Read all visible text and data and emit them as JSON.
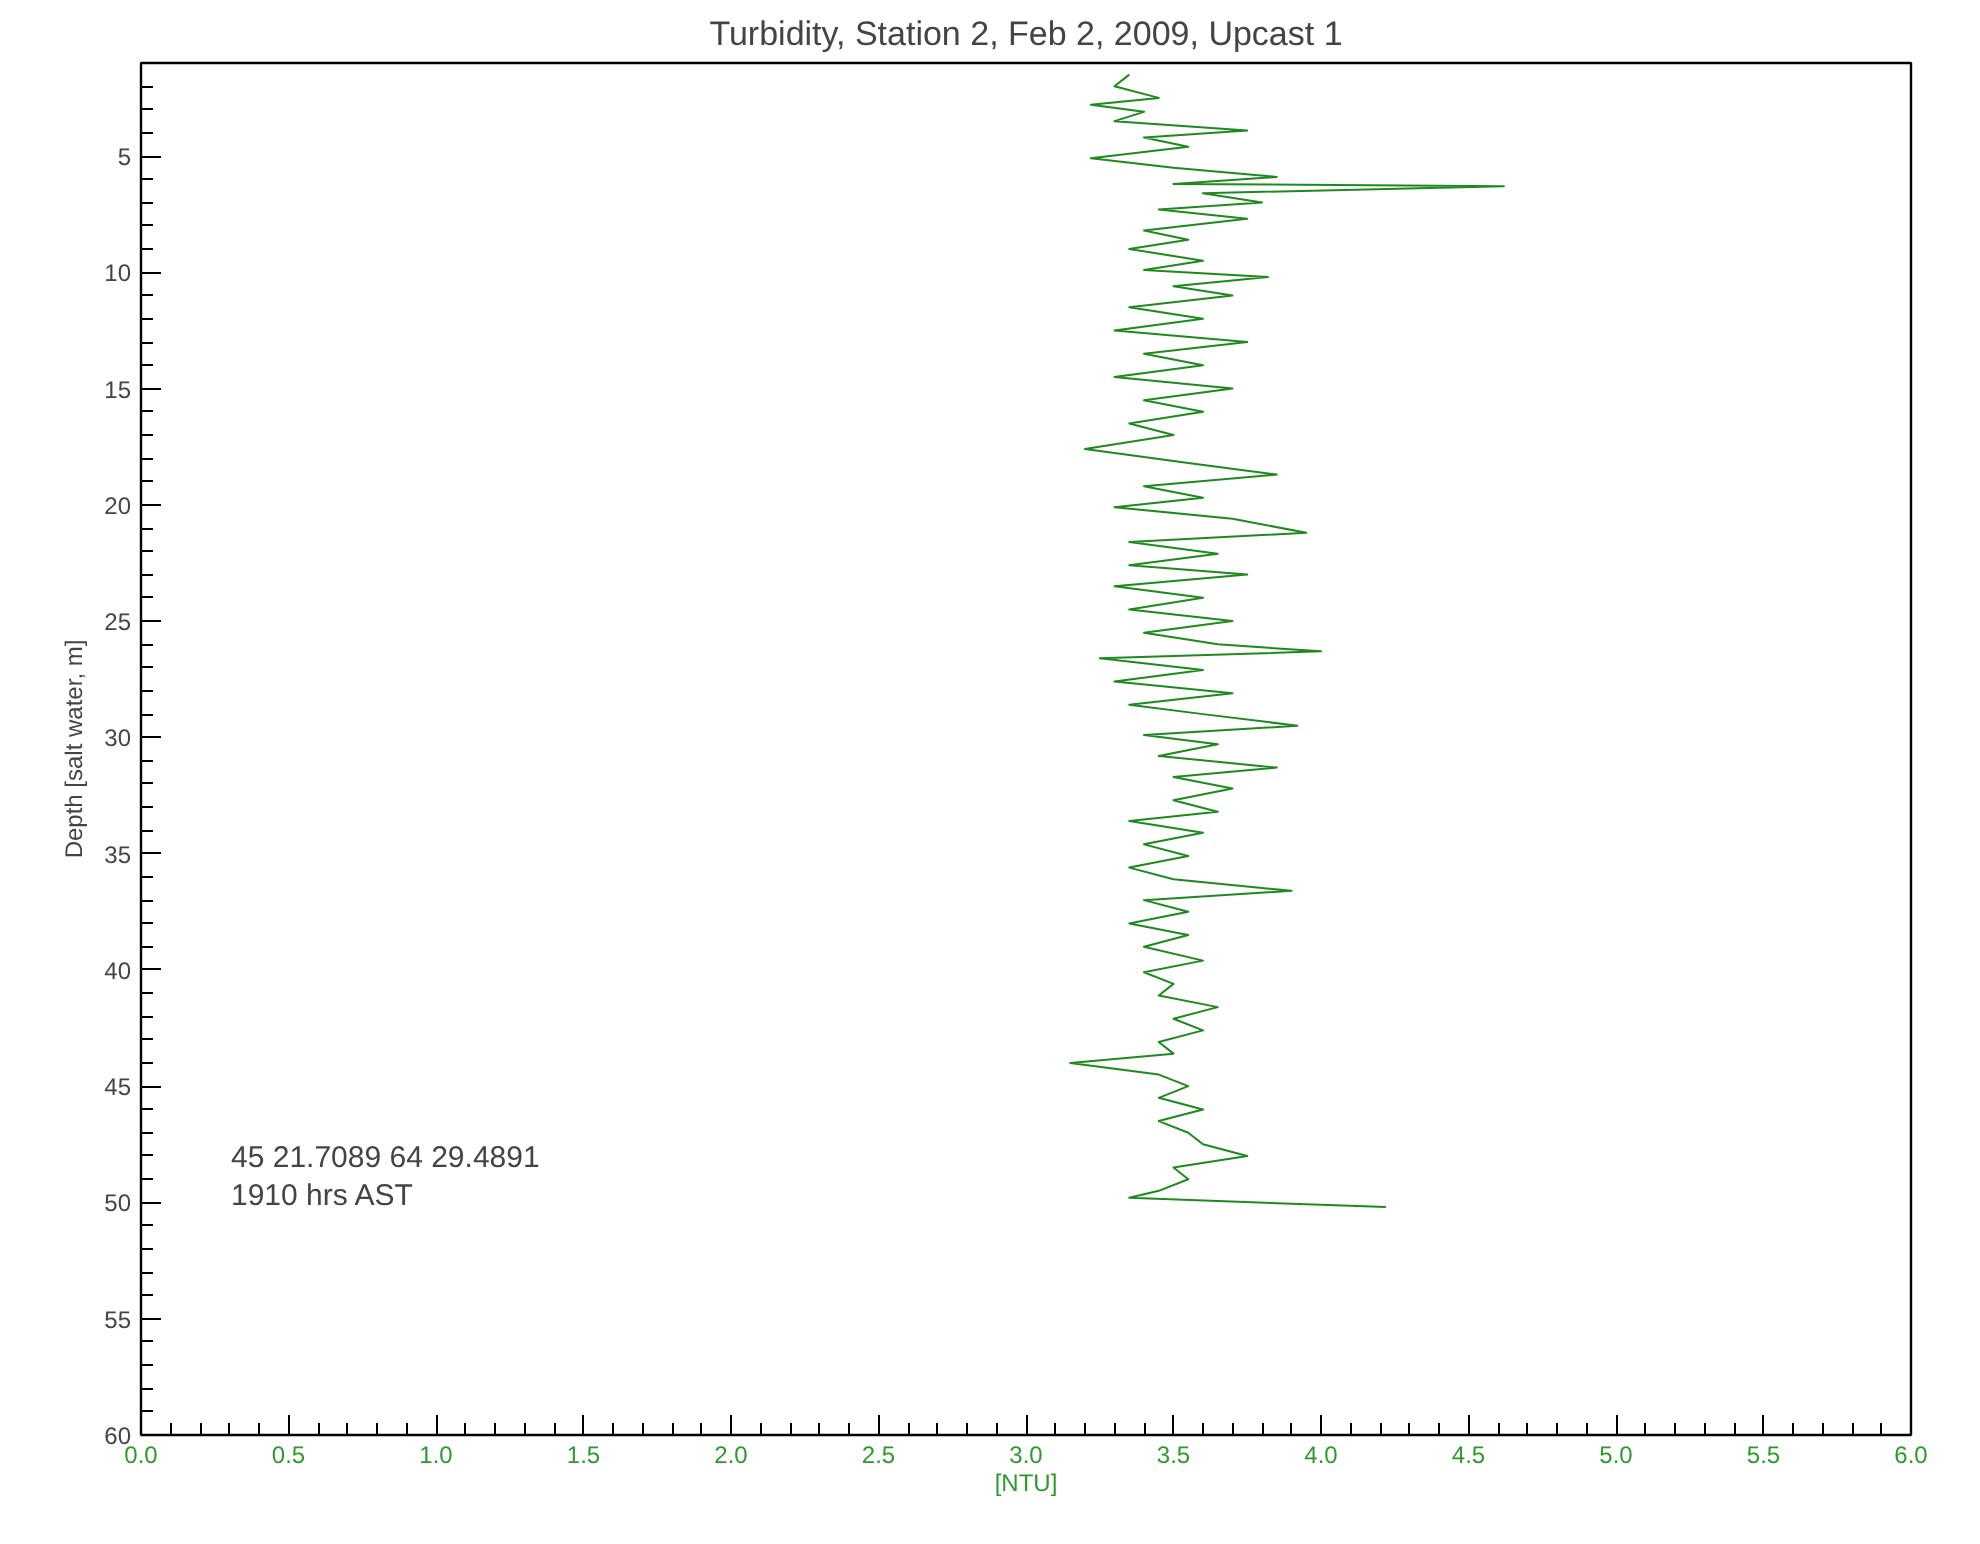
{
  "chart_data": {
    "type": "line",
    "title": "Turbidity, Station 2, Feb 2, 2009, Upcast 1",
    "xlabel": "[NTU]",
    "ylabel": "Depth [salt water, m]",
    "annotations": [
      "45 21.7089    64 29.4891",
      "1910 hrs AST"
    ],
    "xlim": [
      0,
      6
    ],
    "xticks": [
      {
        "value": 0,
        "label": "0.0"
      },
      {
        "value": 0.5,
        "label": "0.5"
      },
      {
        "value": 1,
        "label": "1.0"
      },
      {
        "value": 1.5,
        "label": "1.5"
      },
      {
        "value": 2,
        "label": "2.0"
      },
      {
        "value": 2.5,
        "label": "2.5"
      },
      {
        "value": 3,
        "label": "3.0"
      },
      {
        "value": 3.5,
        "label": "3.5"
      },
      {
        "value": 4,
        "label": "4.0"
      },
      {
        "value": 4.5,
        "label": "4.5"
      },
      {
        "value": 5,
        "label": "5.0"
      },
      {
        "value": 5.5,
        "label": "5.5"
      },
      {
        "value": 6,
        "label": "6.0"
      },
      {
        "value": 0.1,
        "label": null
      },
      {
        "value": 0.2,
        "label": null
      },
      {
        "value": 0.3,
        "label": null
      },
      {
        "value": 0.4,
        "label": null
      },
      {
        "value": 0.6,
        "label": null
      },
      {
        "value": 0.7,
        "label": null
      },
      {
        "value": 0.8,
        "label": null
      },
      {
        "value": 0.9,
        "label": null
      },
      {
        "value": 1.1,
        "label": null
      },
      {
        "value": 1.2,
        "label": null
      },
      {
        "value": 1.3,
        "label": null
      },
      {
        "value": 1.4,
        "label": null
      },
      {
        "value": 1.6,
        "label": null
      },
      {
        "value": 1.7,
        "label": null
      },
      {
        "value": 1.8,
        "label": null
      },
      {
        "value": 1.9,
        "label": null
      },
      {
        "value": 2.1,
        "label": null
      },
      {
        "value": 2.2,
        "label": null
      },
      {
        "value": 2.3,
        "label": null
      },
      {
        "value": 2.4,
        "label": null
      },
      {
        "value": 2.6,
        "label": null
      },
      {
        "value": 2.7,
        "label": null
      },
      {
        "value": 2.8,
        "label": null
      },
      {
        "value": 2.9,
        "label": null
      },
      {
        "value": 3.1,
        "label": null
      },
      {
        "value": 3.2,
        "label": null
      },
      {
        "value": 3.3,
        "label": null
      },
      {
        "value": 3.4,
        "label": null
      },
      {
        "value": 3.6,
        "label": null
      },
      {
        "value": 3.7,
        "label": null
      },
      {
        "value": 3.8,
        "label": null
      },
      {
        "value": 3.9,
        "label": null
      },
      {
        "value": 4.1,
        "label": null
      },
      {
        "value": 4.2,
        "label": null
      },
      {
        "value": 4.3,
        "label": null
      },
      {
        "value": 4.4,
        "label": null
      },
      {
        "value": 4.6,
        "label": null
      },
      {
        "value": 4.7,
        "label": null
      },
      {
        "value": 4.8,
        "label": null
      },
      {
        "value": 4.9,
        "label": null
      },
      {
        "value": 5.1,
        "label": null
      },
      {
        "value": 5.2,
        "label": null
      },
      {
        "value": 5.3,
        "label": null
      },
      {
        "value": 5.4,
        "label": null
      },
      {
        "value": 5.6,
        "label": null
      },
      {
        "value": 5.7,
        "label": null
      },
      {
        "value": 5.8,
        "label": null
      },
      {
        "value": 5.9,
        "label": null
      }
    ],
    "ylim": [
      60,
      1
    ],
    "yticks": [
      {
        "value": 2,
        "label": null
      },
      {
        "value": 3,
        "label": null
      },
      {
        "value": 4,
        "label": null
      },
      5,
      {
        "value": 6,
        "label": null
      },
      {
        "value": 7,
        "label": null
      },
      {
        "value": 8,
        "label": null
      },
      {
        "value": 9,
        "label": null
      },
      10,
      {
        "value": 11,
        "label": null
      },
      {
        "value": 12,
        "label": null
      },
      {
        "value": 13,
        "label": null
      },
      {
        "value": 14,
        "label": null
      },
      15,
      {
        "value": 16,
        "label": null
      },
      {
        "value": 17,
        "label": null
      },
      {
        "value": 18,
        "label": null
      },
      {
        "value": 19,
        "label": null
      },
      20,
      {
        "value": 21,
        "label": null
      },
      {
        "value": 22,
        "label": null
      },
      {
        "value": 23,
        "label": null
      },
      {
        "value": 24,
        "label": null
      },
      25,
      {
        "value": 26,
        "label": null
      },
      {
        "value": 27,
        "label": null
      },
      {
        "value": 28,
        "label": null
      },
      {
        "value": 29,
        "label": null
      },
      30,
      {
        "value": 31,
        "label": null
      },
      {
        "value": 32,
        "label": null
      },
      {
        "value": 33,
        "label": null
      },
      {
        "value": 34,
        "label": null
      },
      35,
      {
        "value": 36,
        "label": null
      },
      {
        "value": 37,
        "label": null
      },
      {
        "value": 38,
        "label": null
      },
      {
        "value": 39,
        "label": null
      },
      40,
      {
        "value": 41,
        "label": null
      },
      {
        "value": 42,
        "label": null
      },
      {
        "value": 43,
        "label": null
      },
      {
        "value": 44,
        "label": null
      },
      45,
      {
        "value": 46,
        "label": null
      },
      {
        "value": 47,
        "label": null
      },
      {
        "value": 48,
        "label": null
      },
      {
        "value": 49,
        "label": null
      },
      50,
      {
        "value": 51,
        "label": null
      },
      {
        "value": 52,
        "label": null
      },
      {
        "value": 53,
        "label": null
      },
      {
        "value": 54,
        "label": null
      },
      55,
      {
        "value": 56,
        "label": null
      },
      {
        "value": 57,
        "label": null
      },
      {
        "value": 58,
        "label": null
      },
      {
        "value": 59,
        "label": null
      },
      60
    ],
    "grid": false,
    "marker": "none",
    "line_style": "solid",
    "series": [
      {
        "color": "#1e8a1e",
        "x": [
          3.35,
          3.3,
          3.45,
          3.22,
          3.4,
          3.3,
          3.75,
          3.4,
          3.55,
          3.22,
          3.5,
          3.85,
          3.5,
          4.62,
          3.6,
          3.8,
          3.45,
          3.75,
          3.4,
          3.55,
          3.35,
          3.6,
          3.4,
          3.82,
          3.5,
          3.7,
          3.35,
          3.6,
          3.3,
          3.75,
          3.4,
          3.6,
          3.3,
          3.7,
          3.4,
          3.6,
          3.35,
          3.5,
          3.2,
          3.55,
          3.85,
          3.4,
          3.6,
          3.3,
          3.7,
          3.95,
          3.35,
          3.65,
          3.35,
          3.75,
          3.3,
          3.6,
          3.35,
          3.7,
          3.4,
          3.65,
          4.0,
          3.25,
          3.6,
          3.3,
          3.7,
          3.35,
          3.6,
          3.92,
          3.4,
          3.65,
          3.45,
          3.85,
          3.5,
          3.7,
          3.5,
          3.65,
          3.35,
          3.6,
          3.4,
          3.55,
          3.35,
          3.5,
          3.9,
          3.4,
          3.55,
          3.35,
          3.55,
          3.4,
          3.6,
          3.4,
          3.5,
          3.45,
          3.65,
          3.5,
          3.6,
          3.45,
          3.5,
          3.15,
          3.45,
          3.55,
          3.45,
          3.6,
          3.45,
          3.55,
          3.6,
          3.75,
          3.5,
          3.55,
          3.45,
          3.35,
          4.22
        ],
        "values": [
          1.5,
          2.0,
          2.5,
          2.8,
          3.1,
          3.5,
          3.9,
          4.2,
          4.6,
          5.1,
          5.5,
          5.9,
          6.2,
          6.3,
          6.6,
          7.0,
          7.3,
          7.7,
          8.2,
          8.6,
          9.0,
          9.5,
          9.9,
          10.2,
          10.6,
          11.0,
          11.5,
          12.0,
          12.5,
          13.0,
          13.5,
          14.0,
          14.5,
          15.0,
          15.5,
          16.0,
          16.5,
          17.0,
          17.6,
          18.2,
          18.7,
          19.2,
          19.7,
          20.1,
          20.6,
          21.2,
          21.6,
          22.1,
          22.6,
          23.0,
          23.5,
          24.0,
          24.5,
          25.0,
          25.5,
          26.0,
          26.3,
          26.6,
          27.1,
          27.6,
          28.1,
          28.6,
          29.0,
          29.5,
          29.9,
          30.3,
          30.8,
          31.3,
          31.7,
          32.2,
          32.7,
          33.2,
          33.6,
          34.1,
          34.6,
          35.1,
          35.6,
          36.1,
          36.6,
          37.0,
          37.5,
          38.0,
          38.5,
          39.0,
          39.6,
          40.1,
          40.6,
          41.1,
          41.6,
          42.1,
          42.6,
          43.1,
          43.6,
          44.0,
          44.5,
          45.0,
          45.5,
          46.0,
          46.5,
          47.0,
          47.5,
          48.0,
          48.5,
          49.0,
          49.5,
          49.8,
          50.2
        ]
      }
    ]
  }
}
